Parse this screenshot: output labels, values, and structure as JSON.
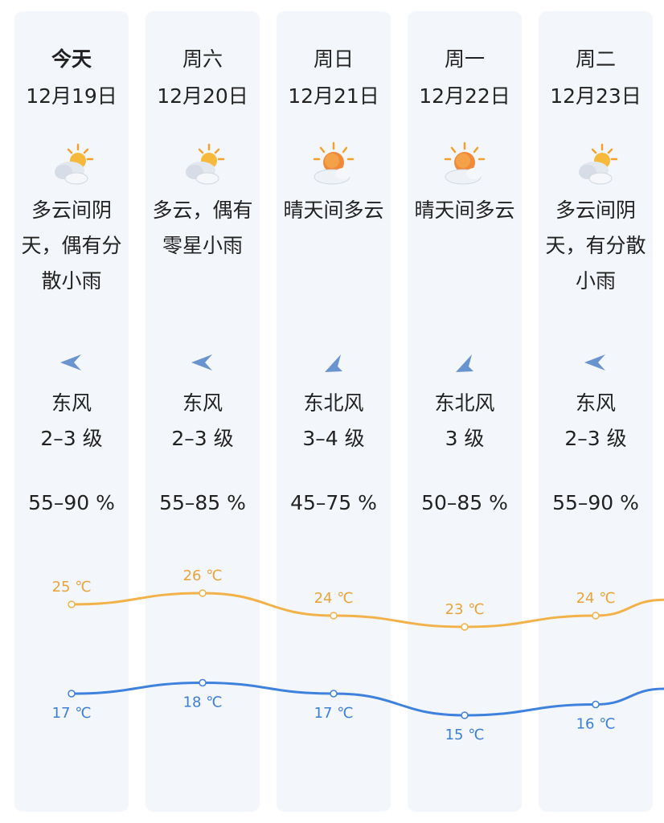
{
  "days": [
    {
      "day": "今天",
      "date": "12月19日",
      "weather_icon": "partly-cloudy-icon",
      "desc_lines": [
        "多云间阴",
        "天，偶有分",
        "散小雨"
      ],
      "wind_dir_icon": "wind-east-arrow-icon",
      "wind": "东风",
      "level": "2–3 级",
      "humidity": "55–90 %",
      "high": 25,
      "high_label": "25 ℃",
      "low": 17,
      "low_label": "17 ℃"
    },
    {
      "day": "周六",
      "date": "12月20日",
      "weather_icon": "partly-cloudy-icon",
      "desc_lines": [
        "多云，偶有",
        "零星小雨"
      ],
      "wind_dir_icon": "wind-east-arrow-icon",
      "wind": "东风",
      "level": "2–3 级",
      "humidity": "55–85 %",
      "high": 26,
      "high_label": "26 ℃",
      "low": 18,
      "low_label": "18 ℃"
    },
    {
      "day": "周日",
      "date": "12月21日",
      "weather_icon": "sunny-cloudy-icon",
      "desc_lines": [
        "晴天间多云"
      ],
      "wind_dir_icon": "wind-northeast-arrow-icon",
      "wind": "东北风",
      "level": "3–4 级",
      "humidity": "45–75 %",
      "high": 24,
      "high_label": "24 ℃",
      "low": 17,
      "low_label": "17 ℃"
    },
    {
      "day": "周一",
      "date": "12月22日",
      "weather_icon": "sunny-cloudy-icon",
      "desc_lines": [
        "晴天间多云"
      ],
      "wind_dir_icon": "wind-northeast-arrow-icon",
      "wind": "东北风",
      "level": "3 级",
      "humidity": "50–85 %",
      "high": 23,
      "high_label": "23 ℃",
      "low": 15,
      "low_label": "15 ℃"
    },
    {
      "day": "周二",
      "date": "12月23日",
      "weather_icon": "partly-cloudy-icon",
      "desc_lines": [
        "多云间阴",
        "天，有分散",
        "小雨"
      ],
      "wind_dir_icon": "wind-east-arrow-icon",
      "wind": "东风",
      "level": "2–3 级",
      "humidity": "55–90 %",
      "high": 24,
      "high_label": "24 ℃",
      "low": 16,
      "low_label": "16 ℃"
    }
  ],
  "colors": {
    "high_line": "#f2b24a",
    "high_label": "#e9a33b",
    "low_line": "#3f82dd",
    "low_label": "#3c7fd6",
    "column_bg": "#f3f6fa",
    "arrow": "#6a94cf"
  }
}
